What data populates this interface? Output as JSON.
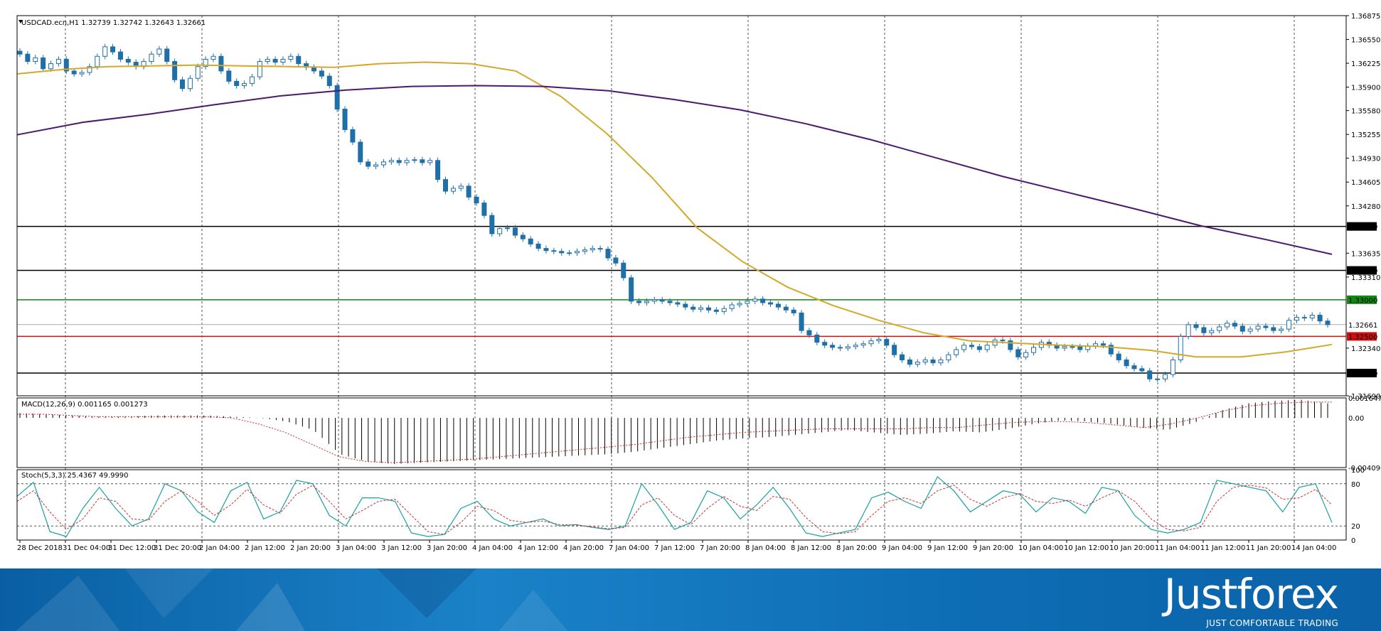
{
  "symbol_header": "USDCAD.ecn,H1  1.32739 1.32742 1.32643 1.32661",
  "macd_header": "MACD(12,26,9) 0.001165 0.001273",
  "stoch_header": "Stoch(5,3,3) 25.4367 49.9990",
  "brand": {
    "name": "Justforex",
    "slogan": "JUST COMFORTABLE TRADING"
  },
  "colors": {
    "candle": "#1f6fa8",
    "ma_short": "#d4a82a",
    "ma_long": "#4b1a6e",
    "level_red": "#d01010",
    "level_green": "#118811",
    "stoch_main": "#1aa0a0",
    "signal": "#c83030"
  },
  "chart_data": [
    {
      "type": "candlestick",
      "title": "USDCAD.ecn,H1",
      "ohlc_last": [
        1.32739,
        1.32742,
        1.32643,
        1.32661
      ],
      "y_ticks": [
        1.36875,
        1.3655,
        1.36225,
        1.359,
        1.3558,
        1.35255,
        1.3493,
        1.34605,
        1.3428,
        1.33635,
        1.3331,
        1.3234,
        1.3169
      ],
      "ylim": [
        1.3169,
        1.36875
      ],
      "x_ticks": [
        "28 Dec 2018",
        "31 Dec 04:00",
        "31 Dec 12:00",
        "31 Dec 20:00",
        "2 Jan 04:00",
        "2 Jan 12:00",
        "2 Jan 20:00",
        "3 Jan 04:00",
        "3 Jan 12:00",
        "3 Jan 20:00",
        "4 Jan 04:00",
        "4 Jan 12:00",
        "4 Jan 20:00",
        "7 Jan 04:00",
        "7 Jan 12:00",
        "7 Jan 20:00",
        "8 Jan 04:00",
        "8 Jan 12:00",
        "8 Jan 20:00",
        "9 Jan 04:00",
        "9 Jan 12:00",
        "9 Jan 20:00",
        "10 Jan 04:00",
        "10 Jan 12:00",
        "10 Jan 20:00",
        "11 Jan 04:00",
        "11 Jan 12:00",
        "11 Jan 20:00",
        "14 Jan 04:00"
      ],
      "horizontal_levels": [
        {
          "label": "1.34000",
          "value": 1.34,
          "color": "black"
        },
        {
          "label": "1.33400",
          "value": 1.334,
          "color": "black"
        },
        {
          "label": "1.33000",
          "value": 1.33,
          "color": "green"
        },
        {
          "label": "1.32661",
          "value": 1.32661,
          "color": "gray"
        },
        {
          "label": "1.32500",
          "value": 1.325,
          "color": "red"
        },
        {
          "label": "1.32000",
          "value": 1.32,
          "color": "black"
        }
      ],
      "close_path": [
        1.3635,
        1.3625,
        1.363,
        1.3615,
        1.3622,
        1.3628,
        1.3612,
        1.3608,
        1.361,
        1.3618,
        1.3632,
        1.3645,
        1.3638,
        1.3628,
        1.3624,
        1.3618,
        1.3625,
        1.3635,
        1.3642,
        1.3625,
        1.36,
        1.3588,
        1.3602,
        1.3618,
        1.3628,
        1.3632,
        1.3612,
        1.3598,
        1.3592,
        1.3595,
        1.3604,
        1.3625,
        1.3628,
        1.3624,
        1.3628,
        1.3632,
        1.3622,
        1.3617,
        1.3612,
        1.3605,
        1.3592,
        1.356,
        1.3532,
        1.3515,
        1.3488,
        1.3482,
        1.3484,
        1.3488,
        1.349,
        1.3487,
        1.349,
        1.3491,
        1.3487,
        1.349,
        1.3464,
        1.3448,
        1.3452,
        1.3455,
        1.344,
        1.3432,
        1.3415,
        1.339,
        1.3397,
        1.3398,
        1.3388,
        1.3383,
        1.3376,
        1.337,
        1.3367,
        1.3366,
        1.3364,
        1.3364,
        1.3366,
        1.3368,
        1.337,
        1.3369,
        1.3357,
        1.335,
        1.333,
        1.3298,
        1.3296,
        1.3298,
        1.33,
        1.3298,
        1.3296,
        1.3294,
        1.329,
        1.3287,
        1.3289,
        1.3286,
        1.3284,
        1.3288,
        1.3293,
        1.3295,
        1.3298,
        1.3301,
        1.3296,
        1.3294,
        1.329,
        1.3286,
        1.3282,
        1.3258,
        1.3252,
        1.3242,
        1.3238,
        1.3235,
        1.3234,
        1.3236,
        1.3238,
        1.324,
        1.3244,
        1.3246,
        1.3238,
        1.3225,
        1.3218,
        1.3212,
        1.3215,
        1.3218,
        1.3214,
        1.3218,
        1.3225,
        1.3232,
        1.3238,
        1.3236,
        1.3232,
        1.3238,
        1.3245,
        1.3244,
        1.3232,
        1.3222,
        1.3228,
        1.3235,
        1.3242,
        1.3238,
        1.3234,
        1.3236,
        1.3236,
        1.3232,
        1.3237,
        1.324,
        1.3238,
        1.3226,
        1.3218,
        1.321,
        1.3206,
        1.3203,
        1.3192,
        1.3192,
        1.3198,
        1.3218,
        1.325,
        1.3266,
        1.3262,
        1.3255,
        1.3258,
        1.3263,
        1.3268,
        1.3264,
        1.3257,
        1.326,
        1.3264,
        1.3262,
        1.3258,
        1.326,
        1.3272,
        1.3276,
        1.3275,
        1.3279,
        1.3271,
        1.3266
      ],
      "ma_short_path": [
        1.3608,
        1.3614,
        1.3618,
        1.3619,
        1.362,
        1.3619,
        1.3618,
        1.3617,
        1.3622,
        1.3624,
        1.3622,
        1.3612,
        1.3577,
        1.3527,
        1.3467,
        1.3398,
        1.3352,
        1.3317,
        1.3292,
        1.3272,
        1.3255,
        1.3244,
        1.3241,
        1.3238,
        1.3236,
        1.3231,
        1.3222,
        1.3222,
        1.3229,
        1.3239
      ],
      "ma_long_path": [
        1.3525,
        1.3542,
        1.3553,
        1.3566,
        1.3578,
        1.3586,
        1.3591,
        1.3592,
        1.3591,
        1.3585,
        1.3573,
        1.3559,
        1.354,
        1.3518,
        1.3493,
        1.3468,
        1.3446,
        1.3424,
        1.3401,
        1.3382,
        1.3362
      ]
    },
    {
      "type": "bar",
      "title": "MACD(12,26,9)",
      "values": [
        0.001165,
        0.001273
      ],
      "y_ticks": [
        0.001647,
        0.0,
        -0.004096
      ],
      "ylim": [
        -0.004096,
        0.001647
      ],
      "macd_path": [
        0.0004,
        0.0003,
        0.0002,
        0.0001,
        0.0001,
        0.0002,
        0.0002,
        0.0002,
        0.0001,
        0.0,
        -0.0003,
        -0.001,
        -0.003,
        -0.0036,
        -0.0038,
        -0.0037,
        -0.0036,
        -0.0035,
        -0.0034,
        -0.0033,
        -0.0032,
        -0.0031,
        -0.003,
        -0.0028,
        -0.0025,
        -0.0022,
        -0.0019,
        -0.0017,
        -0.0016,
        -0.0014,
        -0.0012,
        -0.001,
        -0.0012,
        -0.0014,
        -0.0013,
        -0.0011,
        -0.0012,
        -0.0009,
        -0.0005,
        -0.0002,
        -0.0003,
        -0.0005,
        -0.0008,
        -0.001,
        -0.0004,
        0.0006,
        0.0012,
        0.0014,
        0.0015,
        0.0012
      ],
      "signal_path": [
        0.0003,
        0.0003,
        0.0002,
        0.0001,
        0.0001,
        0.0001,
        0.0001,
        0.0001,
        0.0,
        -0.0005,
        -0.0012,
        -0.0022,
        -0.0032,
        -0.0036,
        -0.0037,
        -0.0036,
        -0.0035,
        -0.0034,
        -0.0032,
        -0.003,
        -0.0028,
        -0.0026,
        -0.0024,
        -0.0022,
        -0.0019,
        -0.0016,
        -0.0014,
        -0.0012,
        -0.0011,
        -0.001,
        -0.0009,
        -0.0009,
        -0.0009,
        -0.0009,
        -0.0008,
        -0.0008,
        -0.0006,
        -0.0004,
        -0.0003,
        -0.0003,
        -0.0004,
        -0.0006,
        -0.0008,
        -0.0005,
        0.0,
        0.0006,
        0.001,
        0.0012,
        0.0013,
        0.0013
      ]
    },
    {
      "type": "line",
      "title": "Stoch(5,3,3)",
      "values": [
        25.4367,
        49.999
      ],
      "y_ticks": [
        100,
        80,
        20,
        0
      ],
      "ylim": [
        0,
        100
      ],
      "main_path": [
        62,
        82,
        12,
        5,
        45,
        75,
        45,
        20,
        30,
        80,
        70,
        40,
        25,
        70,
        82,
        30,
        40,
        85,
        80,
        35,
        20,
        60,
        60,
        55,
        10,
        5,
        8,
        45,
        55,
        30,
        20,
        25,
        30,
        20,
        22,
        18,
        15,
        20,
        80,
        50,
        15,
        25,
        70,
        60,
        30,
        50,
        75,
        45,
        10,
        5,
        10,
        15,
        60,
        68,
        55,
        45,
        90,
        70,
        40,
        55,
        70,
        65,
        40,
        60,
        55,
        38,
        75,
        70,
        35,
        15,
        10,
        15,
        25,
        85,
        80,
        75,
        70,
        40,
        75,
        80,
        25
      ],
      "signal_path": [
        55,
        70,
        40,
        15,
        30,
        60,
        55,
        30,
        28,
        55,
        70,
        55,
        35,
        50,
        72,
        50,
        38,
        65,
        78,
        55,
        30,
        42,
        55,
        58,
        35,
        12,
        8,
        25,
        48,
        42,
        28,
        25,
        27,
        22,
        21,
        19,
        16,
        18,
        50,
        60,
        35,
        22,
        45,
        62,
        48,
        42,
        62,
        58,
        32,
        12,
        9,
        12,
        35,
        55,
        60,
        52,
        70,
        78,
        58,
        48,
        60,
        66,
        55,
        52,
        57,
        48,
        60,
        70,
        55,
        30,
        15,
        13,
        18,
        55,
        75,
        78,
        74,
        58,
        60,
        72,
        50
      ]
    }
  ]
}
